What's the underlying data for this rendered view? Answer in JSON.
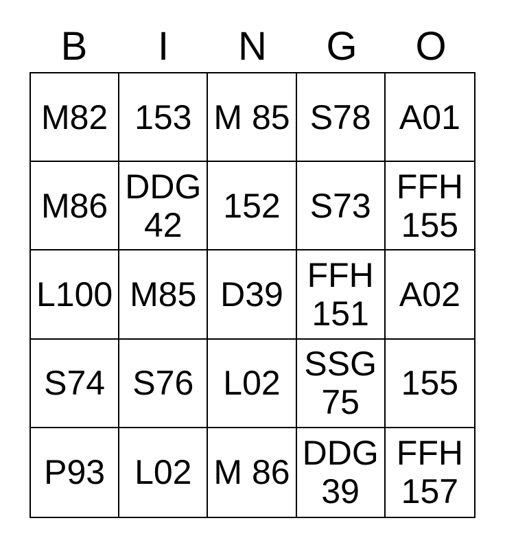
{
  "header": {
    "letters": [
      "B",
      "I",
      "N",
      "G",
      "O"
    ]
  },
  "grid": {
    "rows": [
      [
        "M82",
        "153",
        "M 85",
        "S78",
        "A01"
      ],
      [
        "M86",
        "DDG\n42",
        "152",
        "S73",
        "FFH\n155"
      ],
      [
        "L100",
        "M85",
        "D39",
        "FFH\n151",
        "A02"
      ],
      [
        "S74",
        "S76",
        "L02",
        "SSG\n75",
        "155"
      ],
      [
        "P93",
        "L02",
        "M 86",
        "DDG\n39",
        "FFH\n157"
      ]
    ]
  },
  "colors": {
    "text": "#000000",
    "border": "#000000",
    "background": "#ffffff"
  }
}
